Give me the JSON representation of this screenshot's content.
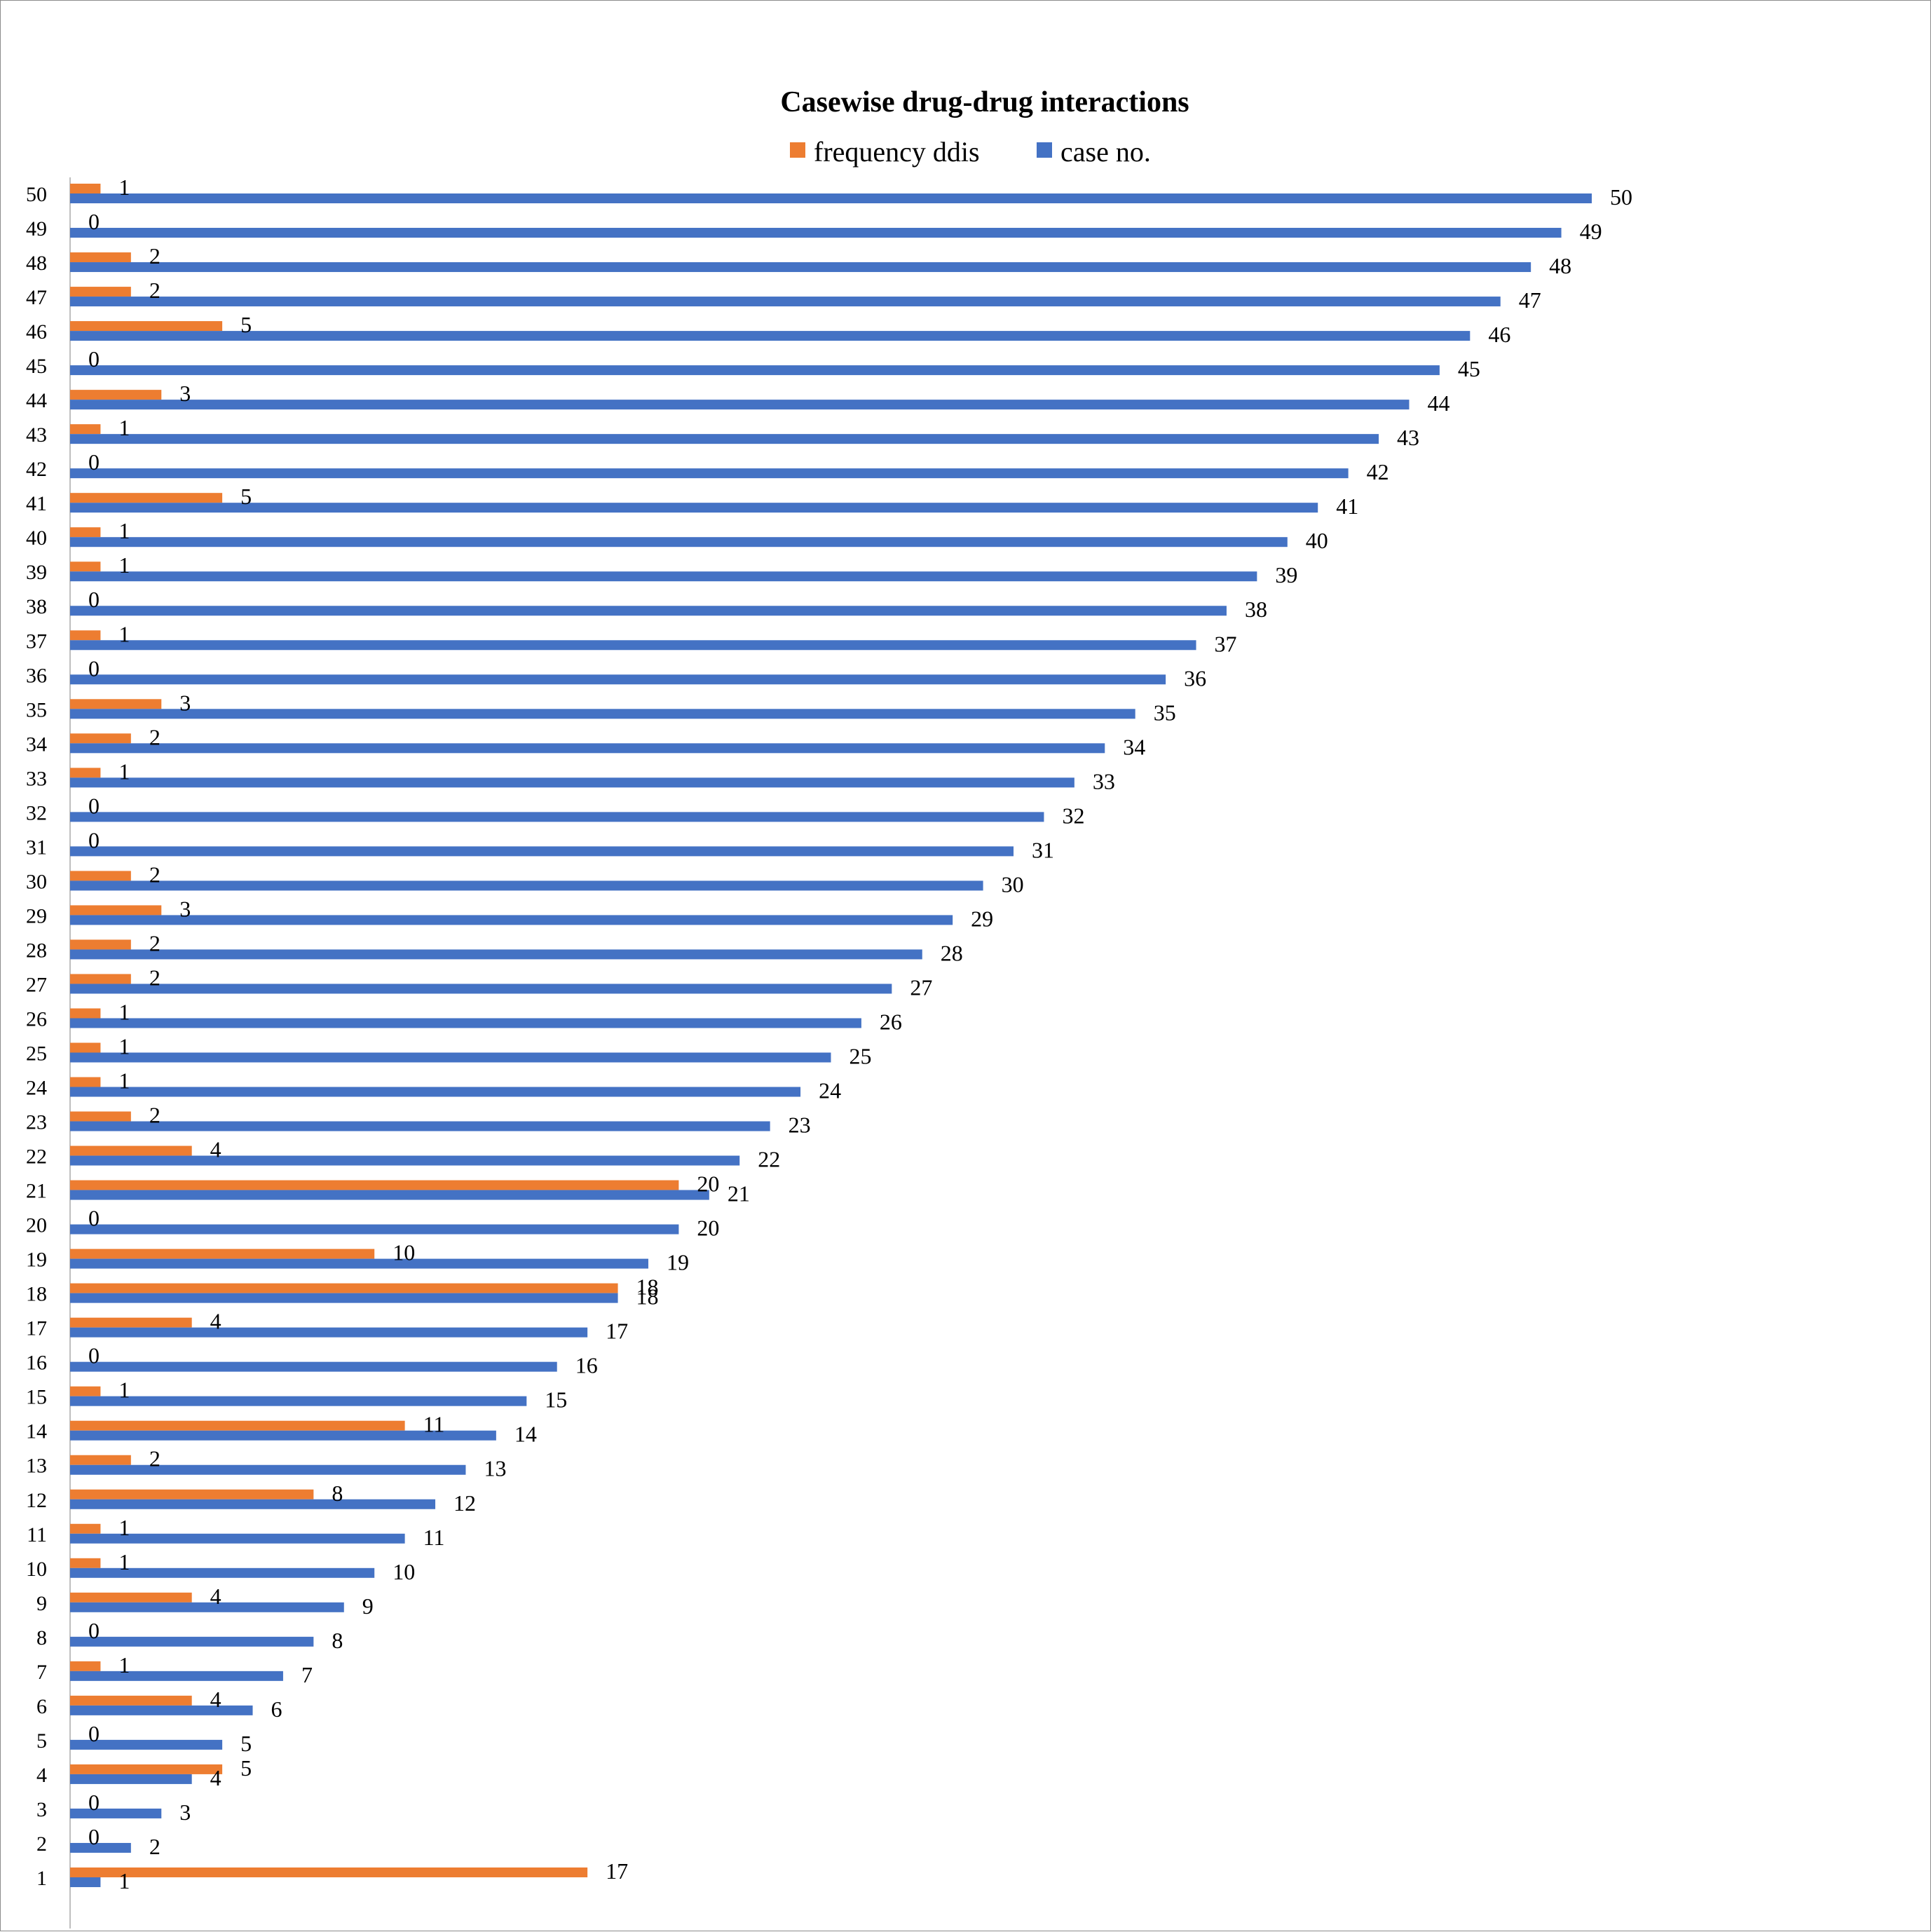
{
  "chart_data": {
    "type": "bar",
    "orientation": "horizontal",
    "title": "Casewise drug-drug interactions",
    "xlabel": "",
    "ylabel": "",
    "xlim": [
      0,
      50
    ],
    "grid": false,
    "legend_position": "top",
    "categories": [
      "1",
      "2",
      "3",
      "4",
      "5",
      "6",
      "7",
      "8",
      "9",
      "10",
      "11",
      "12",
      "13",
      "14",
      "15",
      "16",
      "17",
      "18",
      "19",
      "20",
      "21",
      "22",
      "23",
      "24",
      "25",
      "26",
      "27",
      "28",
      "29",
      "30",
      "31",
      "32",
      "33",
      "34",
      "35",
      "36",
      "37",
      "38",
      "39",
      "40",
      "41",
      "42",
      "43",
      "44",
      "45",
      "46",
      "47",
      "48",
      "49",
      "50"
    ],
    "series": [
      {
        "name": "frequency ddis",
        "color": "#ed7d31",
        "values": [
          17,
          0,
          0,
          5,
          0,
          4,
          1,
          0,
          4,
          1,
          1,
          8,
          2,
          11,
          1,
          0,
          4,
          18,
          10,
          0,
          20,
          4,
          2,
          1,
          1,
          1,
          2,
          2,
          3,
          2,
          0,
          0,
          1,
          2,
          3,
          0,
          1,
          0,
          1,
          1,
          5,
          0,
          1,
          3,
          0,
          5,
          2,
          2,
          0,
          1
        ]
      },
      {
        "name": "case no.",
        "color": "#4472c4",
        "values": [
          1,
          2,
          3,
          4,
          5,
          6,
          7,
          8,
          9,
          10,
          11,
          12,
          13,
          14,
          15,
          16,
          17,
          18,
          19,
          20,
          21,
          22,
          23,
          24,
          25,
          26,
          27,
          28,
          29,
          30,
          31,
          32,
          33,
          34,
          35,
          36,
          37,
          38,
          39,
          40,
          41,
          42,
          43,
          44,
          45,
          46,
          47,
          48,
          49,
          50
        ]
      }
    ]
  }
}
